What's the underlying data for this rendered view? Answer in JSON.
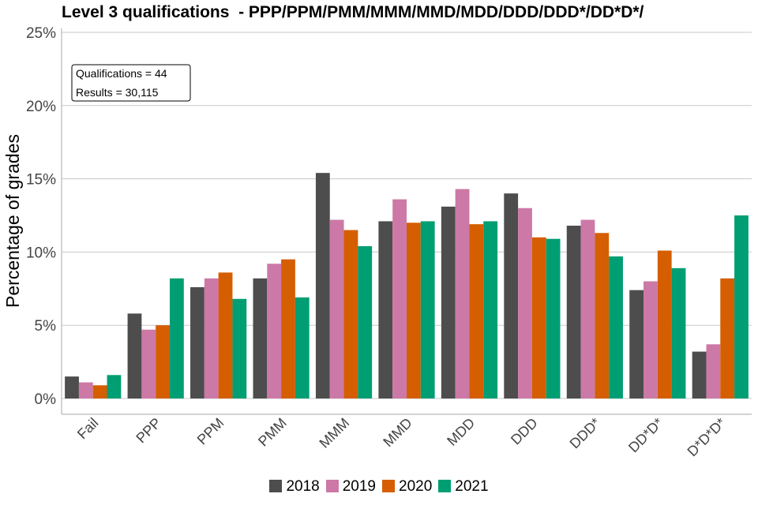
{
  "chart_data": {
    "type": "bar",
    "title": "Level 3 qualifications  - PPP/PPM/PMM/MMM/MMD/MDD/DDD/DDD*/DD*D*/",
    "ylabel": "Percentage of grades",
    "xlabel": "",
    "ylim": [
      0,
      25
    ],
    "yticks": [
      "0%",
      "5%",
      "10%",
      "15%",
      "20%",
      "25%"
    ],
    "categories": [
      "Fail",
      "PPP",
      "PPM",
      "PMM",
      "MMM",
      "MMD",
      "MDD",
      "DDD",
      "DDD*",
      "DD*D*",
      "D*D*D*"
    ],
    "series": [
      {
        "name": "2018",
        "color": "#4d4d4d",
        "values": [
          1.5,
          5.8,
          7.6,
          8.2,
          15.4,
          12.1,
          13.1,
          14.0,
          11.8,
          7.4,
          3.2
        ]
      },
      {
        "name": "2019",
        "color": "#cc79a7",
        "values": [
          1.1,
          4.7,
          8.2,
          9.2,
          12.2,
          13.6,
          14.3,
          13.0,
          12.2,
          8.0,
          3.7
        ]
      },
      {
        "name": "2020",
        "color": "#d55e00",
        "values": [
          0.9,
          5.0,
          8.6,
          9.5,
          11.5,
          12.0,
          11.9,
          11.0,
          11.3,
          10.1,
          8.2
        ]
      },
      {
        "name": "2021",
        "color": "#009e73",
        "values": [
          1.6,
          8.2,
          6.8,
          6.9,
          10.4,
          12.1,
          12.1,
          10.9,
          9.7,
          8.9,
          12.5
        ]
      }
    ],
    "grid": true,
    "legend": "bottom",
    "annotation": {
      "qualifications": "Qualifications = 44",
      "results": "Results = 30,115"
    }
  }
}
